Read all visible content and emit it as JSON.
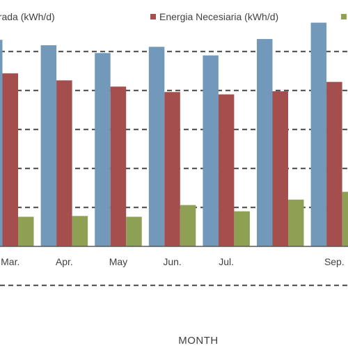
{
  "chart_data": {
    "type": "bar",
    "categories": [
      "Mar.",
      "Apr.",
      "May",
      "Jun.",
      "Jul.",
      "",
      "Sep."
    ],
    "series": [
      {
        "name": "Energía Generada (kWh/d)",
        "color": "#7399BA",
        "values": [
          26.5,
          25.8,
          24.8,
          25.6,
          24.5,
          26.6,
          28.7
        ]
      },
      {
        "name": "Energia Necesiaria (kWh/d)",
        "color": "#A44E4E",
        "values": [
          22.2,
          21.3,
          20.5,
          19.8,
          19.5,
          19.9,
          21.1
        ]
      },
      {
        "name": "",
        "color": "#8DA054",
        "values": [
          3.8,
          3.9,
          3.8,
          5.3,
          4.5,
          6.0,
          7.0
        ]
      }
    ],
    "legend": {
      "placement": "top",
      "visible_labels": [
        "erada (kWh/d)",
        "Energia Necesiaria (kWh/d)",
        ""
      ]
    },
    "xlabel": "MONTH",
    "ylabel": "",
    "ylim": [
      -5,
      30
    ],
    "gridlines": [
      -5,
      0,
      5,
      10,
      15,
      20,
      25
    ],
    "grid": true,
    "grid_style": "dashed"
  }
}
